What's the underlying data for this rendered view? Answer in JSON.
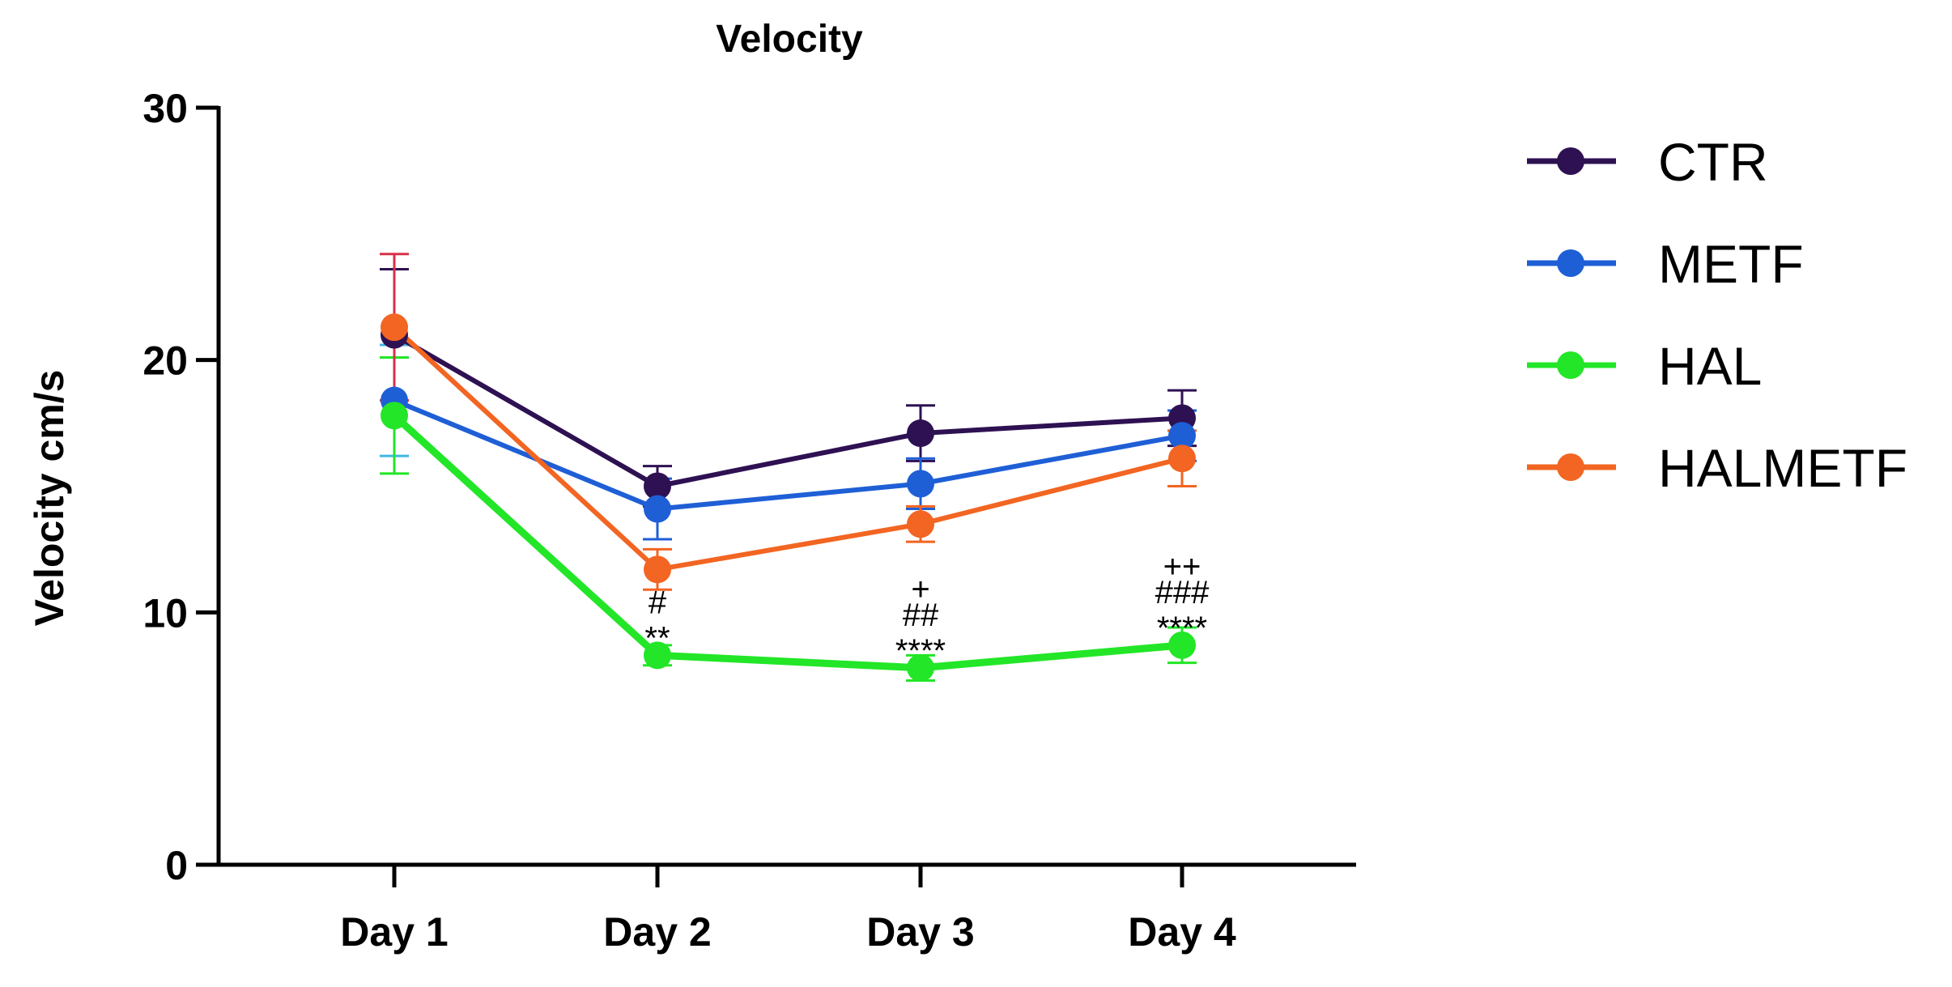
{
  "chart_data": {
    "type": "line",
    "title": "Velocity",
    "xlabel": "",
    "ylabel": "Velocity cm/s",
    "ylim": [
      0,
      30
    ],
    "yticks": [
      0,
      10,
      20,
      30
    ],
    "grid": false,
    "legend_position": "right",
    "categories": [
      "Day 1",
      "Day 2",
      "Day 3",
      "Day 4"
    ],
    "series": [
      {
        "name": "CTR",
        "color": "#2e1152",
        "values": [
          21.0,
          15.0,
          17.1,
          17.7
        ],
        "errors": [
          2.6,
          0.8,
          1.1,
          1.1
        ]
      },
      {
        "name": "METF",
        "color": "#1f5fd6",
        "values": [
          18.4,
          14.1,
          15.1,
          17.0
        ],
        "errors": [
          2.2,
          1.2,
          1.0,
          1.0
        ]
      },
      {
        "name": "HAL",
        "color": "#22e627",
        "values": [
          17.8,
          8.3,
          7.8,
          8.7
        ],
        "errors": [
          2.3,
          0.4,
          0.5,
          0.7
        ]
      },
      {
        "name": "HALMETF",
        "color": "#f26522",
        "values": [
          21.3,
          11.7,
          13.5,
          16.1
        ],
        "errors": [
          2.9,
          0.8,
          0.7,
          1.1
        ]
      }
    ],
    "annotations": [
      {
        "category": "Day 2",
        "lines": [
          "#",
          "**"
        ]
      },
      {
        "category": "Day 3",
        "lines": [
          "+",
          "##",
          "****"
        ]
      },
      {
        "category": "Day 4",
        "lines": [
          "++",
          "###",
          "****"
        ]
      }
    ]
  }
}
